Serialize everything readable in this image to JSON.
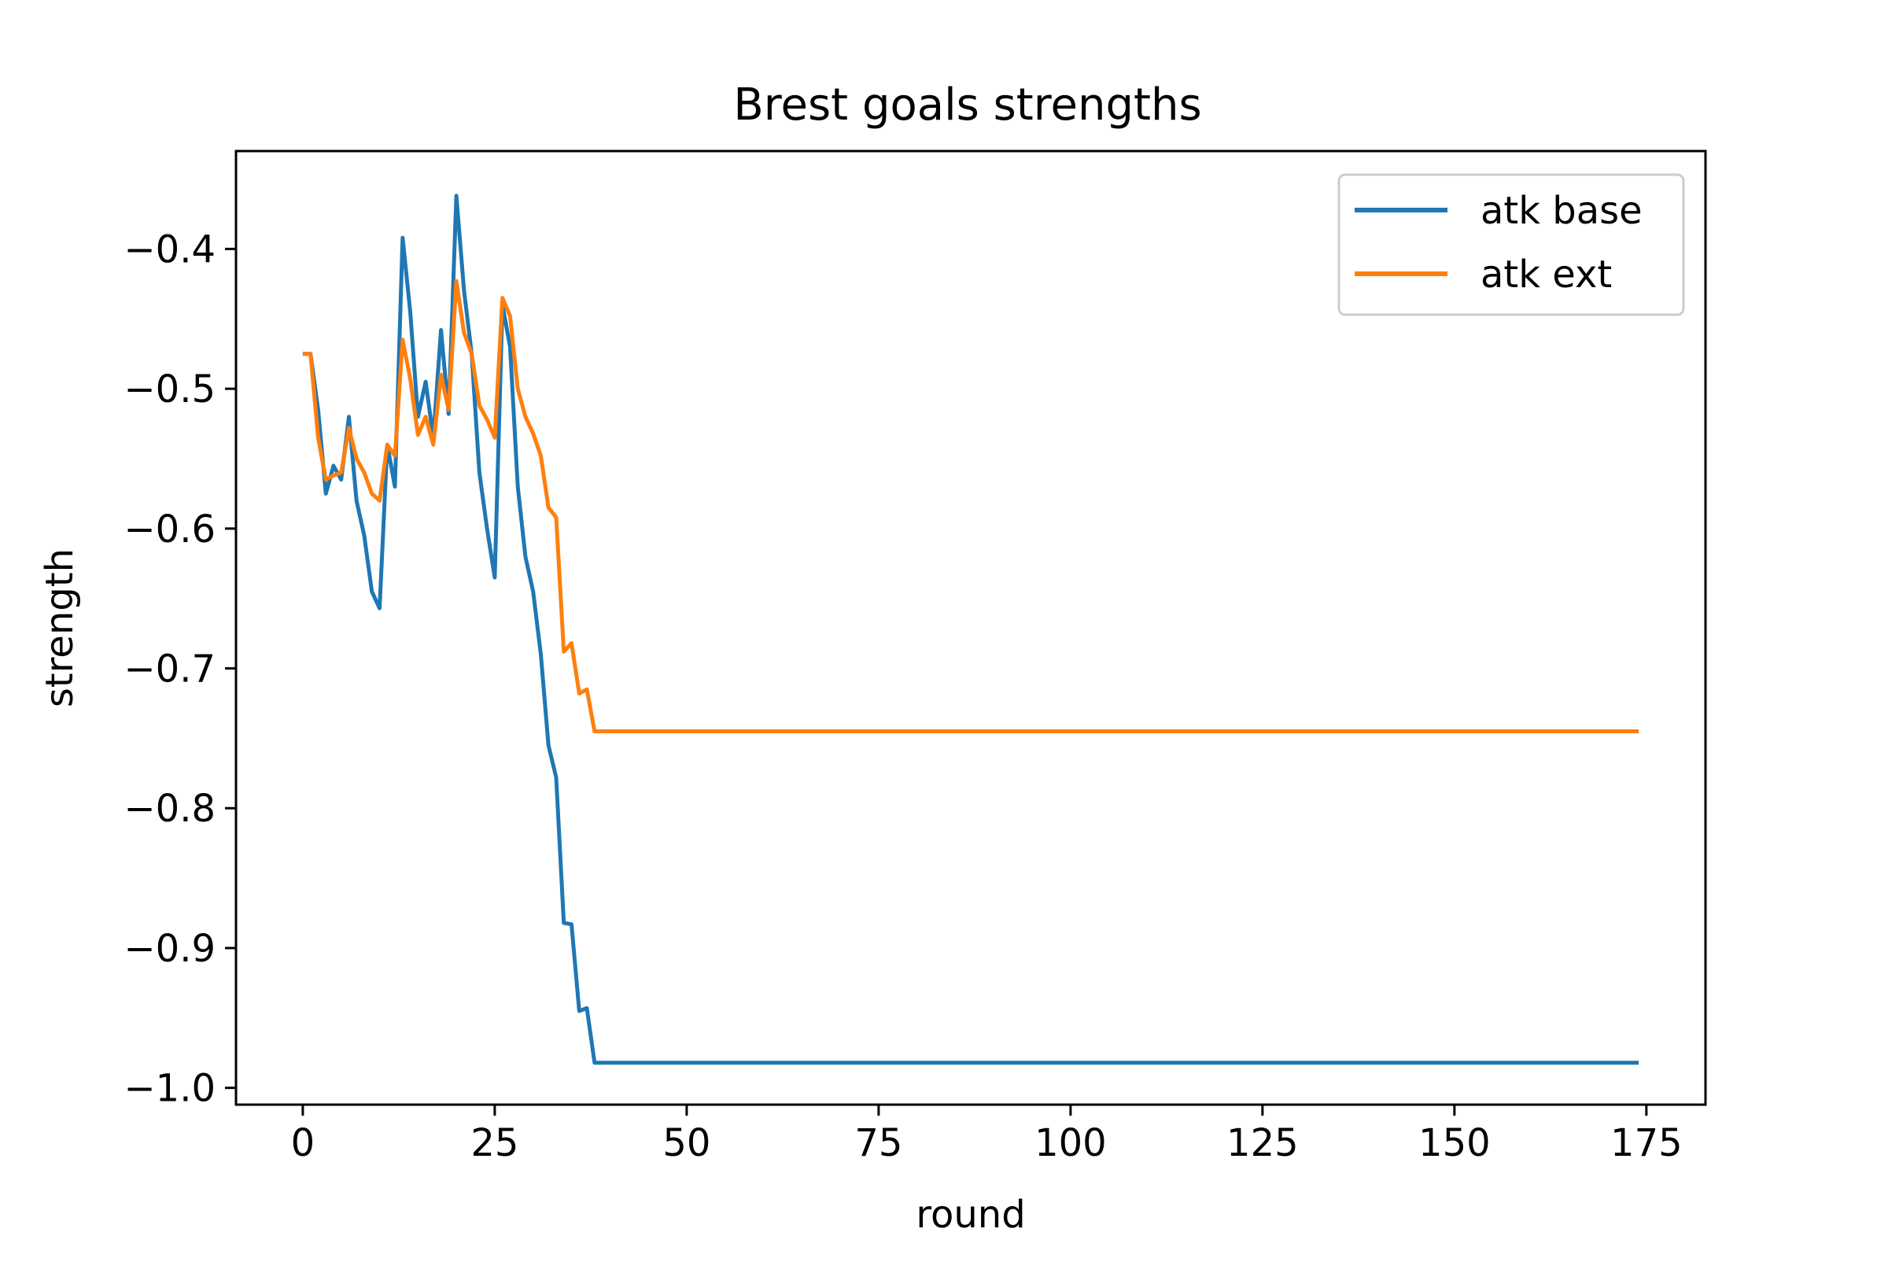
{
  "chart_data": {
    "type": "line",
    "title": "Brest goals strengths",
    "xlabel": "round",
    "ylabel": "strength",
    "xlim": [
      -8.7,
      182.7
    ],
    "ylim": [
      -1.012,
      -0.33
    ],
    "xticks": [
      0,
      25,
      50,
      75,
      100,
      125,
      150,
      175
    ],
    "xtick_labels": [
      "0",
      "25",
      "50",
      "75",
      "100",
      "125",
      "150",
      "175"
    ],
    "yticks": [
      -1.0,
      -0.9,
      -0.8,
      -0.7,
      -0.6,
      -0.5,
      -0.4
    ],
    "ytick_labels": [
      "−1.0",
      "−0.9",
      "−0.8",
      "−0.7",
      "−0.6",
      "−0.5",
      "−0.4"
    ],
    "grid": false,
    "legend_position": "top-right",
    "series": [
      {
        "name": "atk base",
        "color": "#1f77b4",
        "points": [
          [
            0,
            -0.475
          ],
          [
            1,
            -0.475
          ],
          [
            2,
            -0.515
          ],
          [
            3,
            -0.575
          ],
          [
            4,
            -0.555
          ],
          [
            5,
            -0.565
          ],
          [
            6,
            -0.52
          ],
          [
            7,
            -0.58
          ],
          [
            8,
            -0.605
          ],
          [
            9,
            -0.645
          ],
          [
            10,
            -0.657
          ],
          [
            11,
            -0.54
          ],
          [
            12,
            -0.57
          ],
          [
            13,
            -0.392
          ],
          [
            14,
            -0.445
          ],
          [
            15,
            -0.52
          ],
          [
            16,
            -0.495
          ],
          [
            17,
            -0.535
          ],
          [
            18,
            -0.458
          ],
          [
            19,
            -0.518
          ],
          [
            20,
            -0.362
          ],
          [
            21,
            -0.43
          ],
          [
            22,
            -0.475
          ],
          [
            23,
            -0.56
          ],
          [
            24,
            -0.6
          ],
          [
            25,
            -0.635
          ],
          [
            26,
            -0.44
          ],
          [
            27,
            -0.47
          ],
          [
            28,
            -0.57
          ],
          [
            29,
            -0.62
          ],
          [
            30,
            -0.645
          ],
          [
            31,
            -0.69
          ],
          [
            32,
            -0.755
          ],
          [
            33,
            -0.778
          ],
          [
            34,
            -0.882
          ],
          [
            35,
            -0.883
          ],
          [
            36,
            -0.945
          ],
          [
            37,
            -0.943
          ],
          [
            38,
            -0.982
          ],
          [
            174,
            -0.982
          ]
        ]
      },
      {
        "name": "atk ext",
        "color": "#ff7f0e",
        "points": [
          [
            0,
            -0.475
          ],
          [
            1,
            -0.475
          ],
          [
            2,
            -0.535
          ],
          [
            3,
            -0.565
          ],
          [
            4,
            -0.562
          ],
          [
            5,
            -0.56
          ],
          [
            6,
            -0.528
          ],
          [
            7,
            -0.55
          ],
          [
            8,
            -0.56
          ],
          [
            9,
            -0.575
          ],
          [
            10,
            -0.58
          ],
          [
            11,
            -0.54
          ],
          [
            12,
            -0.548
          ],
          [
            13,
            -0.465
          ],
          [
            14,
            -0.493
          ],
          [
            15,
            -0.533
          ],
          [
            16,
            -0.52
          ],
          [
            17,
            -0.54
          ],
          [
            18,
            -0.49
          ],
          [
            19,
            -0.515
          ],
          [
            20,
            -0.423
          ],
          [
            21,
            -0.46
          ],
          [
            22,
            -0.475
          ],
          [
            23,
            -0.512
          ],
          [
            24,
            -0.522
          ],
          [
            25,
            -0.535
          ],
          [
            26,
            -0.435
          ],
          [
            27,
            -0.448
          ],
          [
            28,
            -0.5
          ],
          [
            29,
            -0.52
          ],
          [
            30,
            -0.532
          ],
          [
            31,
            -0.548
          ],
          [
            32,
            -0.585
          ],
          [
            33,
            -0.592
          ],
          [
            34,
            -0.688
          ],
          [
            35,
            -0.682
          ],
          [
            36,
            -0.718
          ],
          [
            37,
            -0.715
          ],
          [
            38,
            -0.745
          ],
          [
            174,
            -0.745
          ]
        ]
      }
    ]
  }
}
